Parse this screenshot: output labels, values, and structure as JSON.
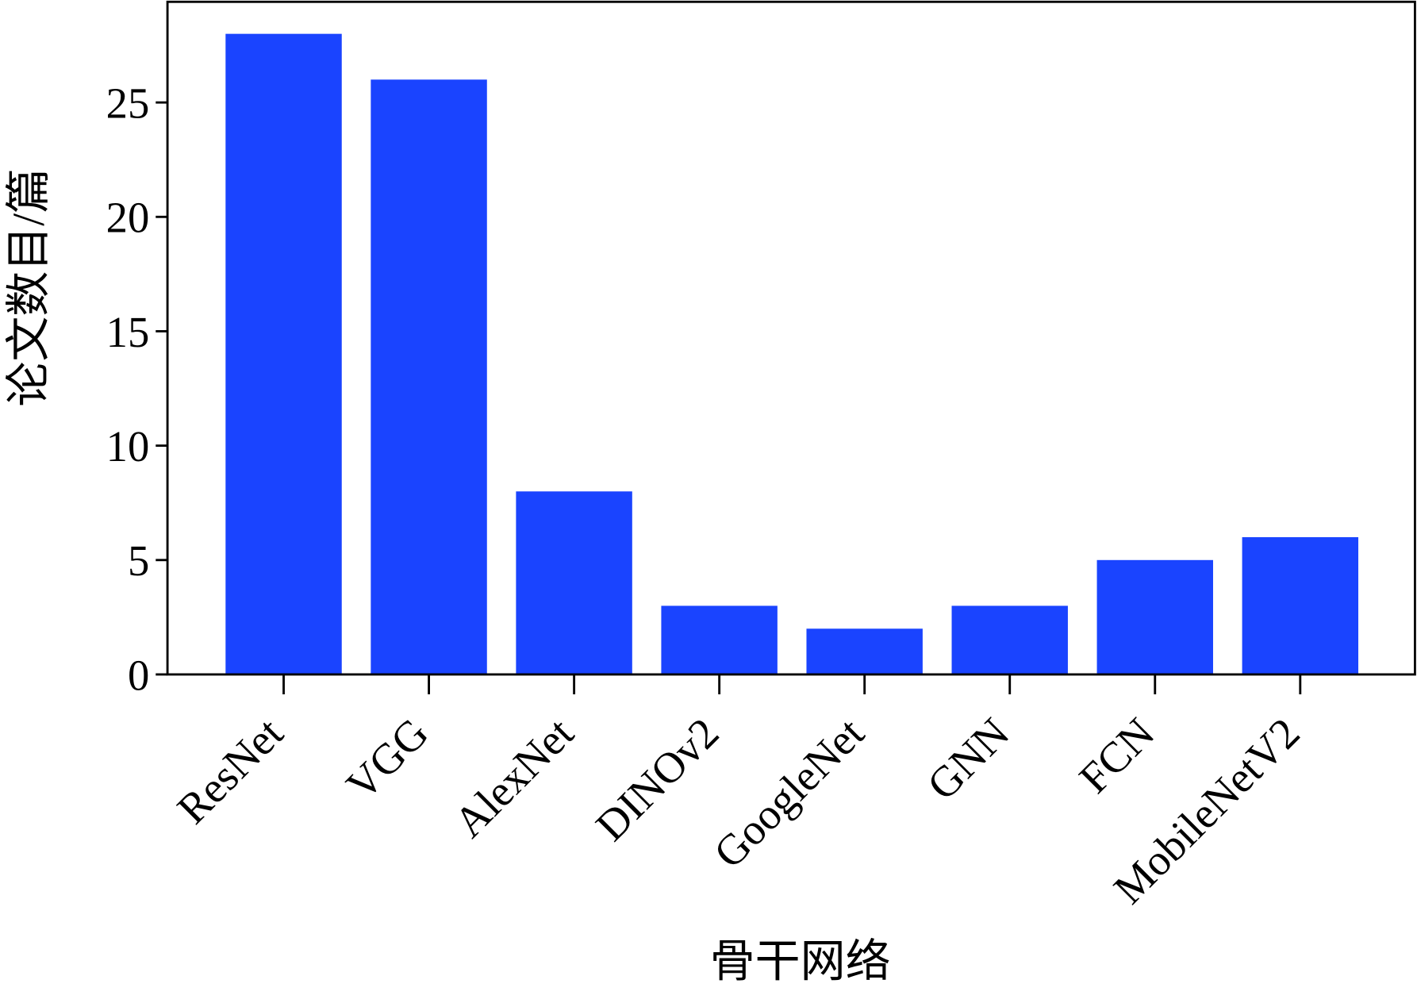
{
  "chart_data": {
    "type": "bar",
    "x_label": "骨干网络",
    "y_label": "论文数目/篇",
    "categories": [
      "ResNet",
      "VGG",
      "AlexNet",
      "DINOv2",
      "GoogleNet",
      "GNN",
      "FCN",
      "MobileNetV2"
    ],
    "values": [
      28,
      26,
      8,
      3,
      2,
      3,
      5,
      6
    ],
    "color": "#1a44ff",
    "ylim": [
      0,
      29.4
    ],
    "yticks": [
      0,
      5,
      10,
      15,
      20,
      25
    ],
    "grid": false
  }
}
